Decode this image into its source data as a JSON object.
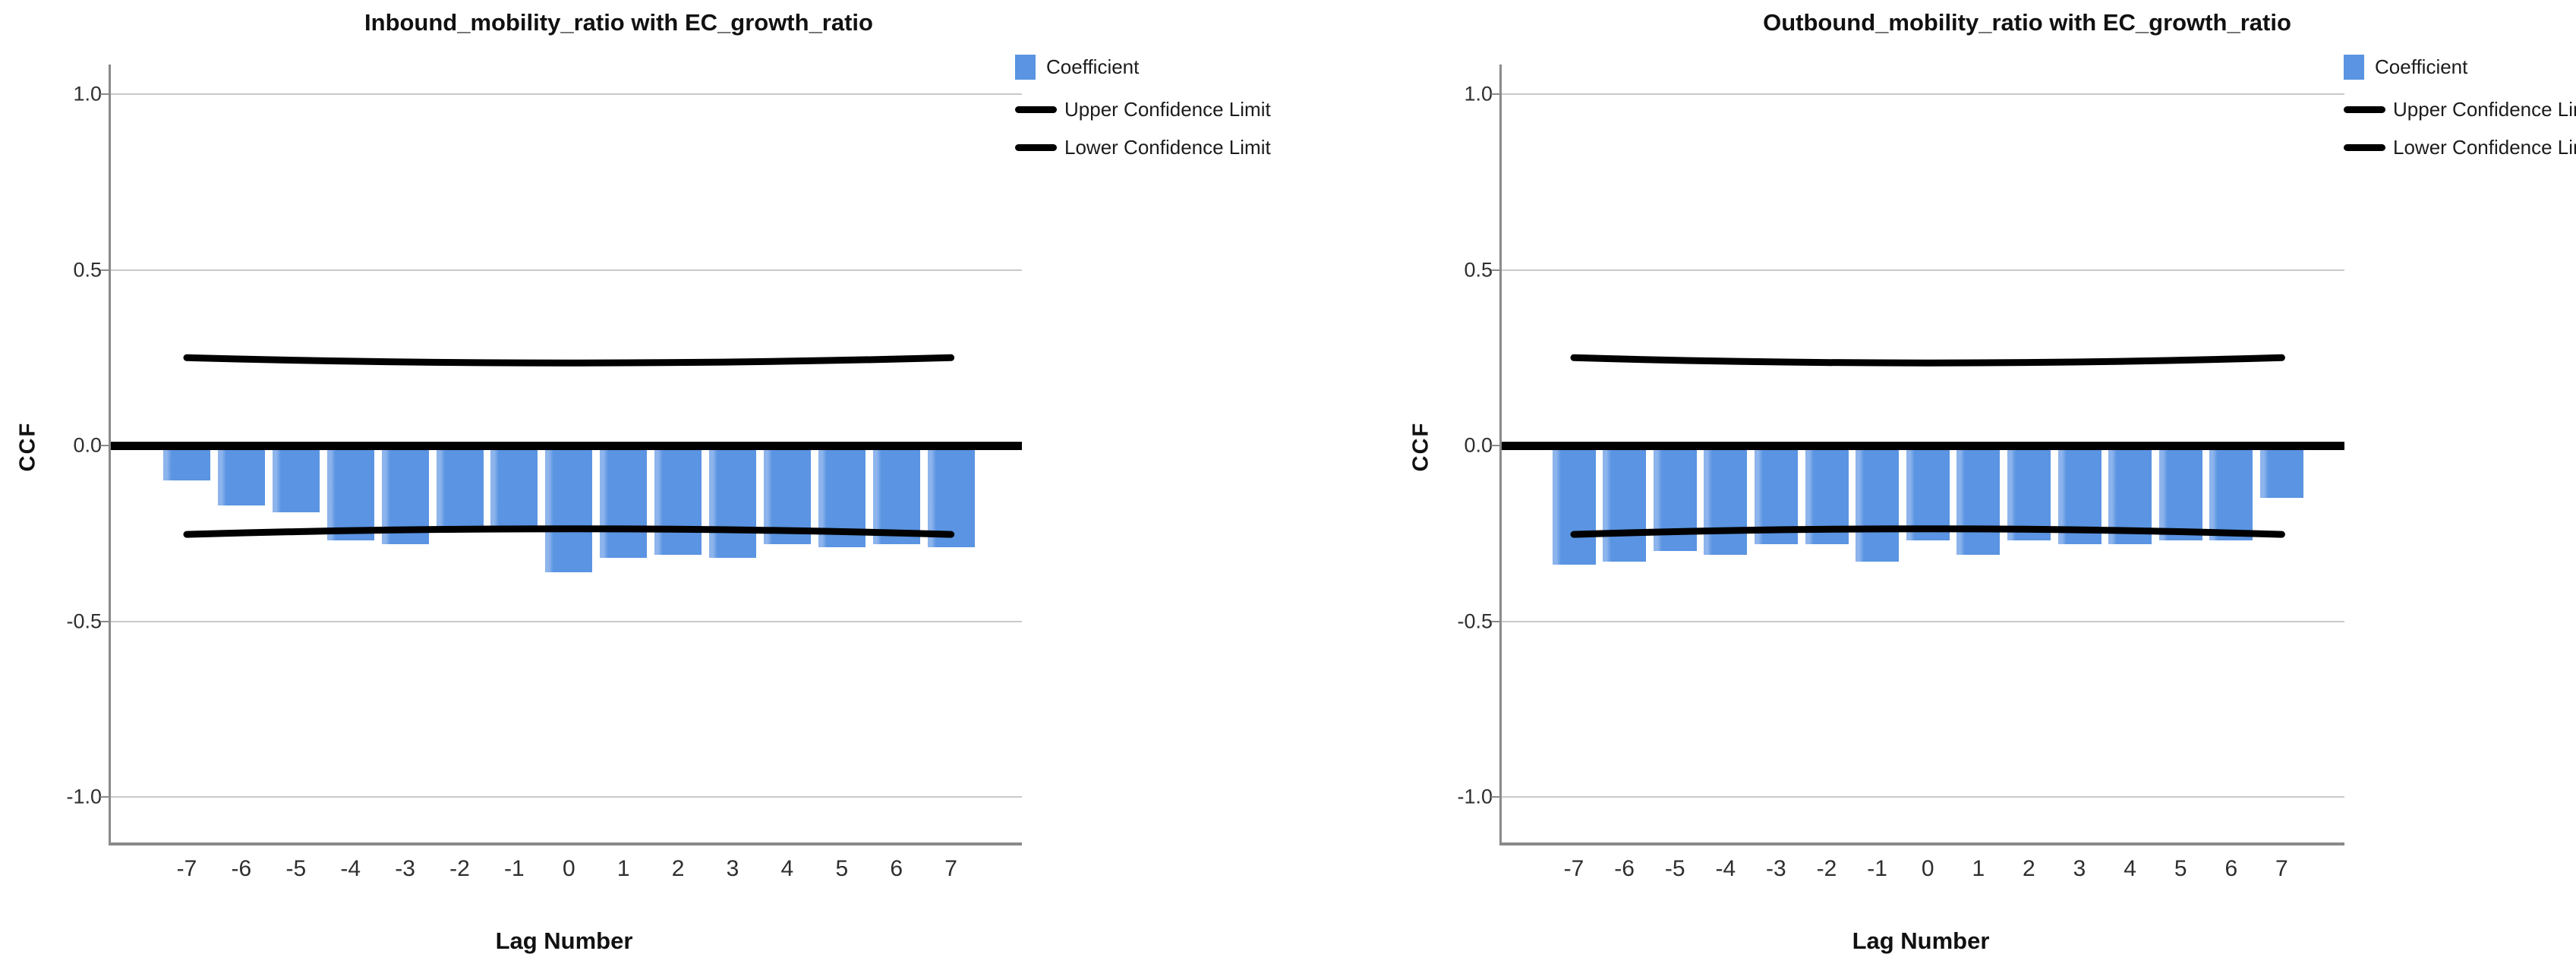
{
  "chart_data": [
    {
      "type": "bar",
      "title": "Inbound_mobility_ratio with EC_growth_ratio",
      "xlabel": "Lag Number",
      "ylabel": "CCF",
      "ylim": [
        -1.0,
        1.0
      ],
      "yticks": [
        "1.0",
        "0.5",
        "0.0",
        "-0.5",
        "-1.0"
      ],
      "ytick_values": [
        1.0,
        0.5,
        0.0,
        -0.5,
        -1.0
      ],
      "categories": [
        "-7",
        "-6",
        "-5",
        "-4",
        "-3",
        "-2",
        "-1",
        "0",
        "1",
        "2",
        "3",
        "4",
        "5",
        "6",
        "7"
      ],
      "values": [
        -0.1,
        -0.17,
        -0.19,
        -0.27,
        -0.28,
        -0.24,
        -0.23,
        -0.36,
        -0.32,
        -0.31,
        -0.32,
        -0.28,
        -0.29,
        -0.28,
        -0.29
      ],
      "upper_confidence_limit": {
        "edge": 0.25,
        "middle": 0.235
      },
      "lower_confidence_limit": {
        "edge": -0.253,
        "middle": -0.237
      },
      "legend": [
        "Coefficient",
        "Upper Confidence Limit",
        "Lower Confidence Limit"
      ],
      "legend_position": "top-right",
      "grid": true
    },
    {
      "type": "bar",
      "title": "Outbound_mobility_ratio with EC_growth_ratio",
      "xlabel": "Lag Number",
      "ylabel": "CCF",
      "ylim": [
        -1.0,
        1.0
      ],
      "yticks": [
        "1.0",
        "0.5",
        "0.0",
        "-0.5",
        "-1.0"
      ],
      "ytick_values": [
        1.0,
        0.5,
        0.0,
        -0.5,
        -1.0
      ],
      "categories": [
        "-7",
        "-6",
        "-5",
        "-4",
        "-3",
        "-2",
        "-1",
        "0",
        "1",
        "2",
        "3",
        "4",
        "5",
        "6",
        "7"
      ],
      "values": [
        -0.34,
        -0.33,
        -0.3,
        -0.31,
        -0.28,
        -0.28,
        -0.33,
        -0.27,
        -0.31,
        -0.27,
        -0.28,
        -0.28,
        -0.27,
        -0.27,
        -0.15
      ],
      "upper_confidence_limit": {
        "edge": 0.25,
        "middle": 0.235
      },
      "lower_confidence_limit": {
        "edge": -0.253,
        "middle": -0.237
      },
      "legend": [
        "Coefficient",
        "Upper Confidence Limit",
        "Lower Confidence Limit"
      ],
      "legend_position": "top-right",
      "grid": true
    }
  ],
  "colors": {
    "bar_fill": "#5a94e2",
    "confidence_line": "#000000",
    "zero_line": "#000000",
    "gridline": "#c9c9c9",
    "axis_frame": "#8a8a8a"
  }
}
